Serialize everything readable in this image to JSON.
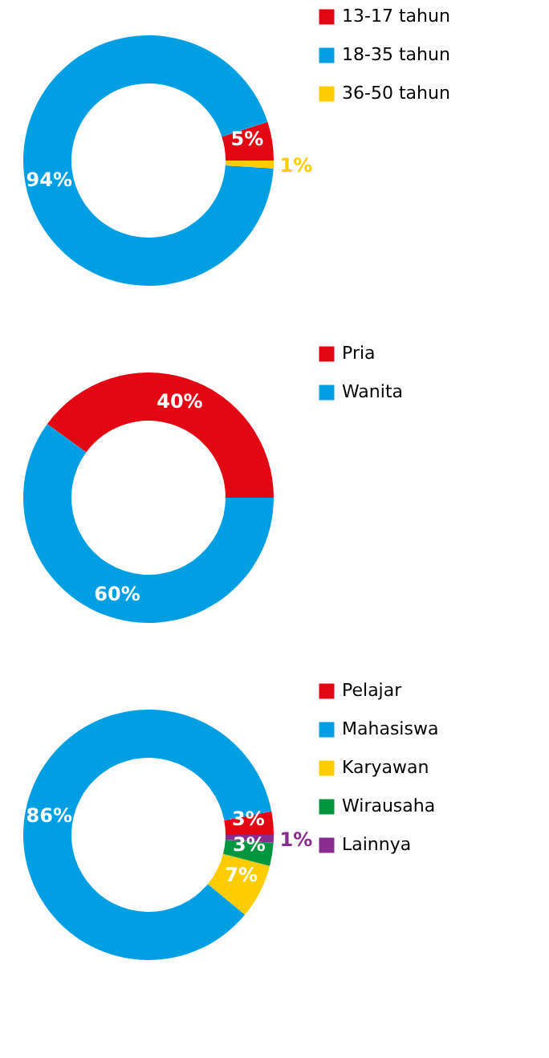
{
  "chart_data": [
    {
      "type": "donut",
      "categories": [
        "13-17 tahun",
        "18-35 tahun",
        "36-50 tahun"
      ],
      "values": [
        5,
        94,
        1
      ],
      "colors": [
        "#e30613",
        "#009fe3",
        "#ffcc00"
      ],
      "value_labels": [
        "5%",
        "94%",
        "1%"
      ],
      "legend": "right"
    },
    {
      "type": "donut",
      "categories": [
        "Pria",
        "Wanita"
      ],
      "values": [
        40,
        60
      ],
      "colors": [
        "#e30613",
        "#009fe3"
      ],
      "value_labels": [
        "40%",
        "60%"
      ],
      "legend": "right"
    },
    {
      "type": "donut",
      "categories": [
        "Pelajar",
        "Mahasiswa",
        "Karyawan",
        "Wirausaha",
        "Lainnya"
      ],
      "values": [
        3,
        86,
        7,
        3,
        1
      ],
      "colors": [
        "#e30613",
        "#009fe3",
        "#ffcc00",
        "#009640",
        "#8a2b8f"
      ],
      "value_labels": [
        "3%",
        "86%",
        "7%",
        "3%",
        "1%"
      ],
      "legend": "right"
    }
  ]
}
